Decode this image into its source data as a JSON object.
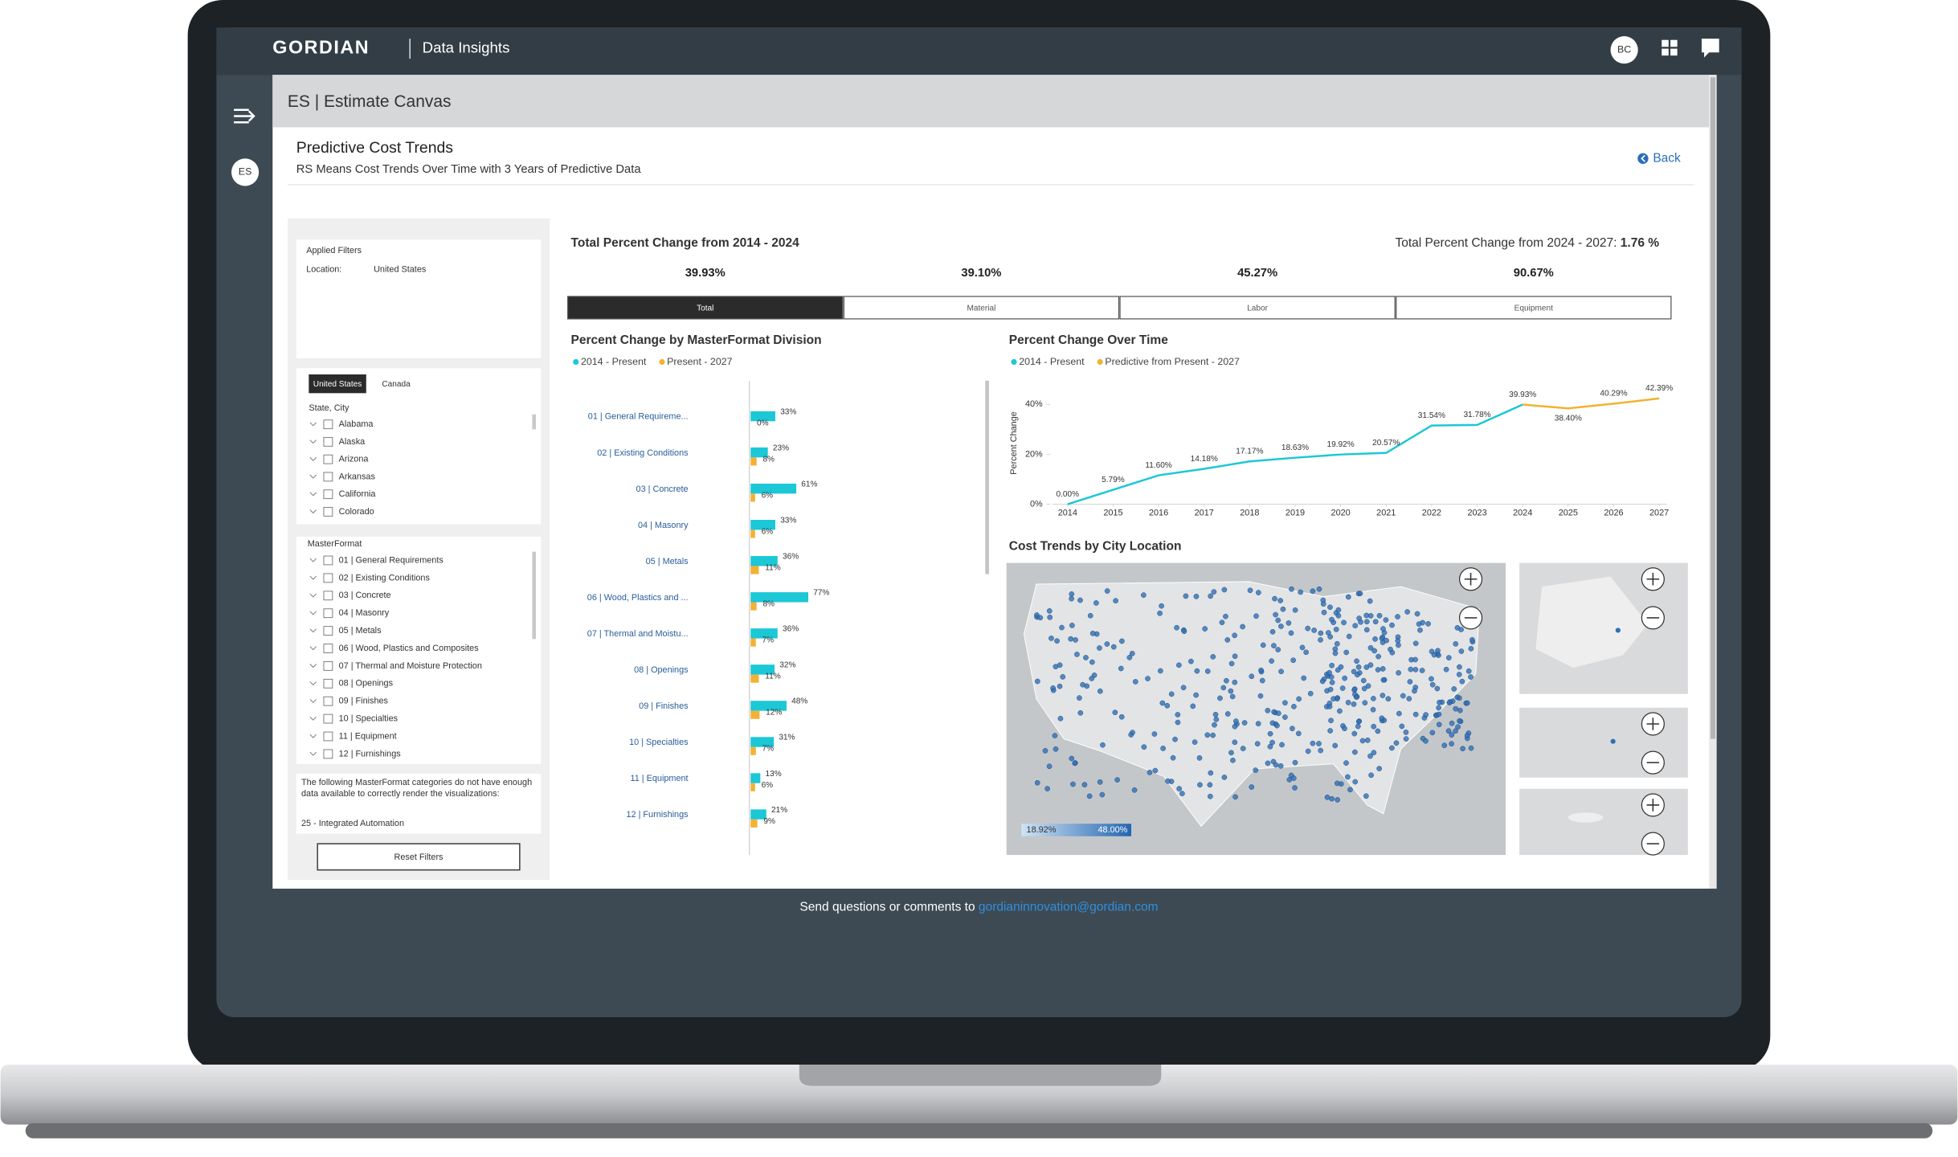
{
  "header": {
    "brand": "GORDIAN",
    "app": "Data Insights",
    "user": "BC"
  },
  "sidebar": {
    "badge": "ES"
  },
  "page": {
    "breadcrumb": "ES | Estimate Canvas",
    "title": "Predictive Cost Trends",
    "subtitle": "RS Means Cost Trends Over Time with 3 Years of Predictive Data",
    "back": "Back"
  },
  "filters": {
    "heading": "Applied Filters",
    "location_label": "Location:",
    "location_value": "United States",
    "tabs": [
      "United States",
      "Canada"
    ],
    "state_label": "State, City",
    "states": [
      "Alabama",
      "Alaska",
      "Arizona",
      "Arkansas",
      "California",
      "Colorado"
    ],
    "masterformat_label": "MasterFormat",
    "divisions": [
      "01 | General Requirements",
      "02 | Existing Conditions",
      "03 | Concrete",
      "04 | Masonry",
      "05 | Metals",
      "06 | Wood, Plastics and Composites",
      "07 | Thermal and Moisture Protection",
      "08 | Openings",
      "09 | Finishes",
      "10 | Specialties",
      "11 | Equipment",
      "12 | Furnishings"
    ],
    "note": "The following MasterFormat categories do not have enough data available to correctly render the visualizations:",
    "note_item": "25 - Integrated Automation",
    "reset": "Reset Filters"
  },
  "summary": {
    "title": "Total Percent Change from 2014 - 2024",
    "predict_label": "Total Percent Change from 2024 - 2027:",
    "predict_value": "1.76 %",
    "values": [
      "39.93%",
      "39.10%",
      "45.27%",
      "90.67%"
    ],
    "tabs": [
      "Total",
      "Material",
      "Labor",
      "Equipment"
    ]
  },
  "division_chart": {
    "type": "bar",
    "title": "Percent Change by MasterFormat Division",
    "categories": [
      "01 | General Requireme...",
      "02 | Existing Conditions",
      "03 | Concrete",
      "04 | Masonry",
      "05 | Metals",
      "06 | Wood, Plastics and ...",
      "07 | Thermal and Moistu...",
      "08 | Openings",
      "09 | Finishes",
      "10 | Specialties",
      "11 | Equipment",
      "12 | Furnishings"
    ],
    "series": [
      {
        "name": "2014 - Present",
        "color": "#1cc7d6",
        "values": [
          33,
          23,
          61,
          33,
          36,
          77,
          36,
          32,
          48,
          31,
          13,
          21
        ],
        "value_labels": [
          "33%",
          "23%",
          "61%",
          "33%",
          "36%",
          "77%",
          "36%",
          "32%",
          "48%",
          "31%",
          "13%",
          "21%"
        ]
      },
      {
        "name": "Present - 2027",
        "color": "#f2b233",
        "values": [
          0,
          8,
          6,
          6,
          11,
          8,
          7,
          11,
          12,
          7,
          6,
          9
        ],
        "value_labels": [
          "0%",
          "8%",
          "6%",
          "6%",
          "11%",
          "8%",
          "7%",
          "11%",
          "12%",
          "7%",
          "6%",
          "9%"
        ]
      }
    ]
  },
  "trend_chart": {
    "type": "line",
    "title": "Percent Change Over Time",
    "y_label": "Percent Change",
    "x": [
      2014,
      2015,
      2016,
      2017,
      2018,
      2019,
      2020,
      2021,
      2022,
      2023,
      2024,
      2025,
      2026,
      2027
    ],
    "xlim": [
      2014,
      2027
    ],
    "ylim": [
      0,
      45
    ],
    "yticks": [
      {
        "value": 0,
        "label": "0%"
      },
      {
        "value": 20,
        "label": "20%"
      },
      {
        "value": 40,
        "label": "40%"
      }
    ],
    "series": [
      {
        "name": "2014 - Present",
        "color": "#1cc7d6",
        "values": [
          0,
          5.79,
          11.6,
          14.18,
          17.17,
          18.63,
          19.92,
          20.57,
          31.54,
          31.78,
          39.93,
          null,
          null,
          null
        ],
        "value_labels": [
          "0.00%",
          "5.79%",
          "11.60%",
          "14.18%",
          "17.17%",
          "18.63%",
          "19.92%",
          "20.57%",
          "31.54%",
          "31.78%",
          "39.93%",
          null,
          null,
          null
        ]
      },
      {
        "name": "Predictive from Present - 2027",
        "color": "#f2b233",
        "values": [
          null,
          null,
          null,
          null,
          null,
          null,
          null,
          null,
          null,
          null,
          39.93,
          38.4,
          40.29,
          42.39
        ],
        "value_labels": [
          null,
          null,
          null,
          null,
          null,
          null,
          null,
          null,
          null,
          null,
          null,
          "38.40%",
          "40.29%",
          "42.39%"
        ]
      }
    ]
  },
  "map": {
    "title": "Cost Trends by City Location",
    "legend_min": "18.92%",
    "legend_max": "48.00%"
  },
  "footer": {
    "text": "Send questions or comments to",
    "email": "gordianinnovation@gordian.com"
  }
}
